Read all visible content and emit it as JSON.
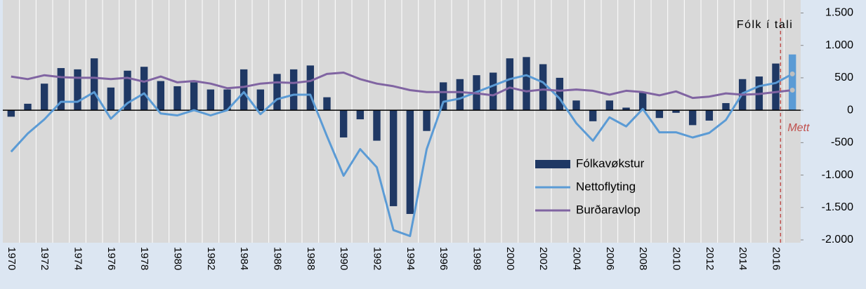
{
  "chart_data": {
    "type": "bar-line",
    "categories": [
      "1970",
      null,
      "1972",
      null,
      "1974",
      null,
      "1976",
      null,
      "1978",
      null,
      "1980",
      null,
      "1982",
      null,
      "1984",
      null,
      "1986",
      null,
      "1988",
      null,
      "1990",
      null,
      "1992",
      null,
      "1994",
      null,
      "1996",
      null,
      "1998",
      null,
      "2000",
      null,
      "2002",
      null,
      "2004",
      null,
      "2006",
      null,
      "2008",
      null,
      "2010",
      null,
      "2012",
      null,
      "2014",
      null,
      "2016",
      null
    ],
    "series": [
      {
        "name": "Fólkavøkstur",
        "kind": "bar",
        "color": "#1f3864",
        "highlight_color": "#5b9bd5",
        "values": [
          -100,
          100,
          410,
          650,
          630,
          800,
          350,
          610,
          670,
          450,
          370,
          430,
          320,
          320,
          630,
          320,
          560,
          630,
          690,
          200,
          -420,
          -140,
          -470,
          -1480,
          -1600,
          -320,
          430,
          480,
          540,
          580,
          800,
          820,
          710,
          500,
          150,
          -170,
          150,
          40,
          280,
          -120,
          -40,
          -230,
          -160,
          110,
          480,
          520,
          720,
          860
        ]
      },
      {
        "name": "Nettoflyting",
        "kind": "line",
        "color": "#5b9bd5",
        "values": [
          -640,
          -360,
          -140,
          130,
          130,
          280,
          -130,
          110,
          260,
          -50,
          -80,
          0,
          -80,
          0,
          280,
          -60,
          170,
          240,
          240,
          -400,
          -1010,
          -600,
          -880,
          -1850,
          -1940,
          -600,
          130,
          180,
          280,
          380,
          480,
          540,
          430,
          180,
          -200,
          -470,
          -110,
          -250,
          20,
          -340,
          -340,
          -420,
          -350,
          -150,
          260,
          370,
          420,
          560
        ]
      },
      {
        "name": "Burðaravlop",
        "kind": "line",
        "color": "#8064a2",
        "values": [
          520,
          480,
          540,
          510,
          500,
          500,
          480,
          500,
          440,
          520,
          430,
          450,
          410,
          340,
          360,
          410,
          430,
          420,
          450,
          560,
          580,
          480,
          410,
          370,
          310,
          280,
          280,
          280,
          260,
          230,
          350,
          290,
          320,
          300,
          320,
          300,
          240,
          300,
          280,
          230,
          290,
          190,
          210,
          260,
          240,
          250,
          280,
          310
        ]
      }
    ],
    "ylim": [
      -2000,
      1700
    ],
    "yticks": [
      {
        "value": -2000,
        "label": "-2.000"
      },
      {
        "value": -1500,
        "label": "-1.500"
      },
      {
        "value": -1000,
        "label": "-1.000"
      },
      {
        "value": -500,
        "label": "-500"
      },
      0,
      500,
      {
        "value": 1000,
        "label": "1.000"
      },
      {
        "value": 1500,
        "label": "1.500"
      }
    ],
    "annotations": [
      {
        "text": "Fólk í tali"
      },
      {
        "text": "Mett",
        "color": "#c0504d"
      }
    ],
    "grid": true,
    "legend": "lower right"
  }
}
